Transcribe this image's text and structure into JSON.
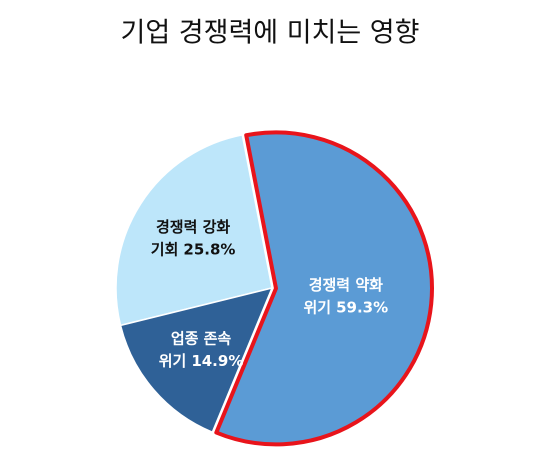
{
  "chart_data": {
    "type": "pie",
    "title": "기업 경쟁력에 미치는 영향",
    "categories": [
      [
        "경쟁력 약화",
        "위기"
      ],
      [
        "업종 존속",
        "위기"
      ],
      [
        "경쟁력 강화",
        "기회"
      ]
    ],
    "values": [
      59.3,
      14.9,
      25.8
    ],
    "value_labels": [
      "59.3%",
      "14.9%",
      "25.8%"
    ],
    "colors": [
      "#5b9bd5",
      "#2f6197",
      "#bde6fa"
    ],
    "label_colors": [
      "#ffffff",
      "#ffffff",
      "#111111"
    ],
    "highlight_color": "#e8141b"
  }
}
